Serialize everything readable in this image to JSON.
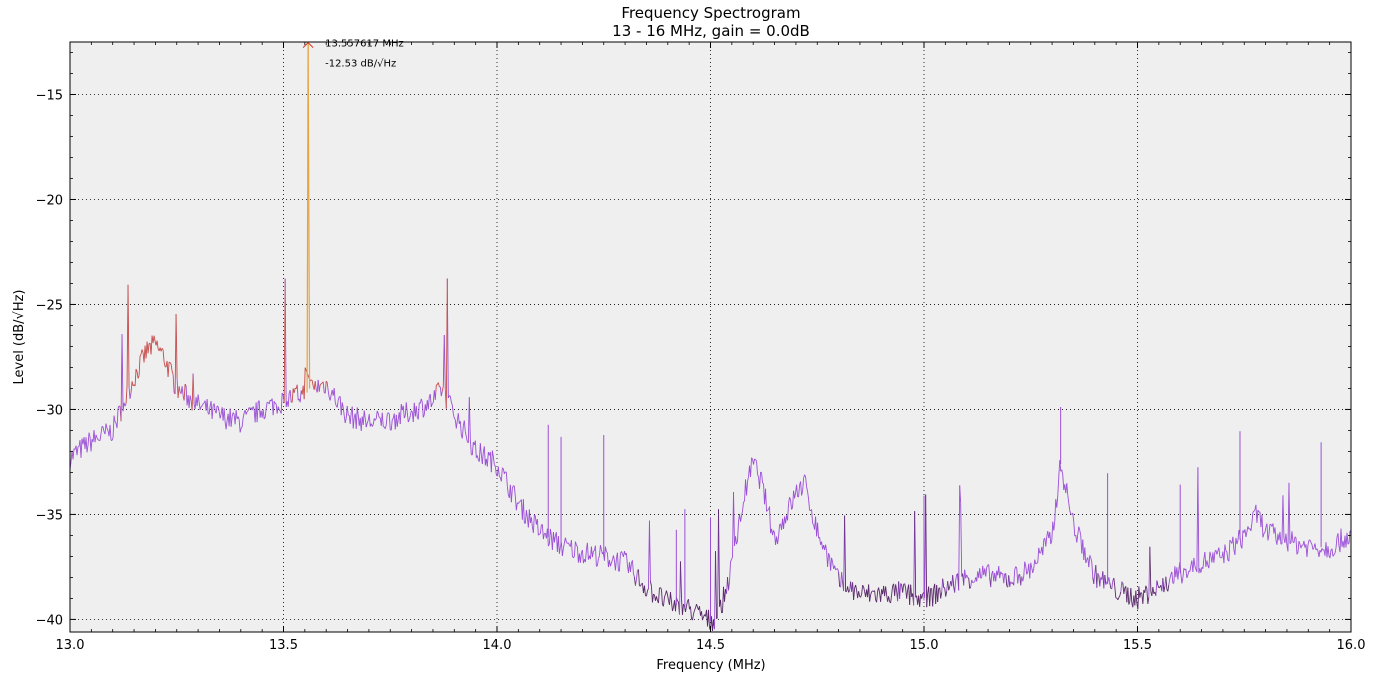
{
  "chart_data": {
    "type": "line",
    "title": "Frequency Spectrogram",
    "subtitle": "13 - 16 MHz, gain = 0.0dB",
    "xlabel": "Frequency (MHz)",
    "ylabel": "Level (dB/√Hz)",
    "xlim": [
      13.0,
      16.0
    ],
    "ylim": [
      -40.6,
      -12.5
    ],
    "x_ticks": [
      13.0,
      13.5,
      14.0,
      14.5,
      15.0,
      15.5,
      16.0
    ],
    "x_tick_labels": [
      "13.0",
      "13.5",
      "14.0",
      "14.5",
      "15.0",
      "15.5",
      "16.0"
    ],
    "y_ticks": [
      -15,
      -20,
      -25,
      -30,
      -35,
      -40
    ],
    "y_tick_labels": [
      "−15",
      "−20",
      "−25",
      "−30",
      "−35",
      "−40"
    ],
    "grid": true,
    "background_color": "#efefef",
    "colors": {
      "low": "#5a2a6a",
      "mid": "#9b4fd6",
      "high": "#c64a4a",
      "peak": "#e8a33c"
    },
    "series": [
      {
        "x": [
          13.0,
          13.05,
          13.1,
          13.15,
          13.18,
          13.2,
          13.22,
          13.25,
          13.3,
          13.35,
          13.4,
          13.45,
          13.5,
          13.55,
          13.5576,
          13.56,
          13.6,
          13.65,
          13.7,
          13.75,
          13.8,
          13.85,
          13.87,
          13.9,
          13.95,
          14.0,
          14.05,
          14.1,
          14.15,
          14.2,
          14.25,
          14.3,
          14.35,
          14.4,
          14.45,
          14.5,
          14.52,
          14.55,
          14.58,
          14.6,
          14.62,
          14.65,
          14.7,
          14.72,
          14.75,
          14.8,
          14.85,
          14.9,
          14.95,
          15.0,
          15.05,
          15.1,
          15.15,
          15.2,
          15.25,
          15.3,
          15.32,
          15.35,
          15.4,
          15.45,
          15.5,
          15.55,
          15.6,
          15.65,
          15.7,
          15.75,
          15.78,
          15.8,
          15.85,
          15.9,
          15.95,
          16.0
        ],
        "y": [
          -32.3,
          -31.5,
          -31.0,
          -28.5,
          -27.2,
          -26.9,
          -27.5,
          -29.0,
          -29.8,
          -30.3,
          -30.6,
          -30.0,
          -29.6,
          -29.2,
          -12.53,
          -29.0,
          -28.8,
          -30.3,
          -30.6,
          -30.5,
          -30.1,
          -29.6,
          -29.0,
          -30.2,
          -32.0,
          -32.6,
          -34.5,
          -35.8,
          -36.5,
          -36.8,
          -37.0,
          -37.3,
          -38.5,
          -39.2,
          -39.5,
          -40.1,
          -39.8,
          -37.5,
          -34.0,
          -32.5,
          -33.5,
          -36.2,
          -34.0,
          -33.5,
          -35.8,
          -38.2,
          -38.8,
          -38.8,
          -38.7,
          -39.1,
          -38.5,
          -38.0,
          -37.9,
          -38.1,
          -37.6,
          -36.0,
          -32.6,
          -35.5,
          -37.9,
          -38.6,
          -39.0,
          -38.5,
          -37.8,
          -37.3,
          -37.0,
          -36.0,
          -35.0,
          -35.8,
          -36.3,
          -36.5,
          -36.6,
          -35.9
        ]
      }
    ],
    "annotations": [
      {
        "text": "13.557617 MHz",
        "x": 13.5576,
        "y": -12.53
      },
      {
        "text": "-12.53 dB/√Hz",
        "x": 13.5576,
        "y": -12.53
      }
    ]
  }
}
